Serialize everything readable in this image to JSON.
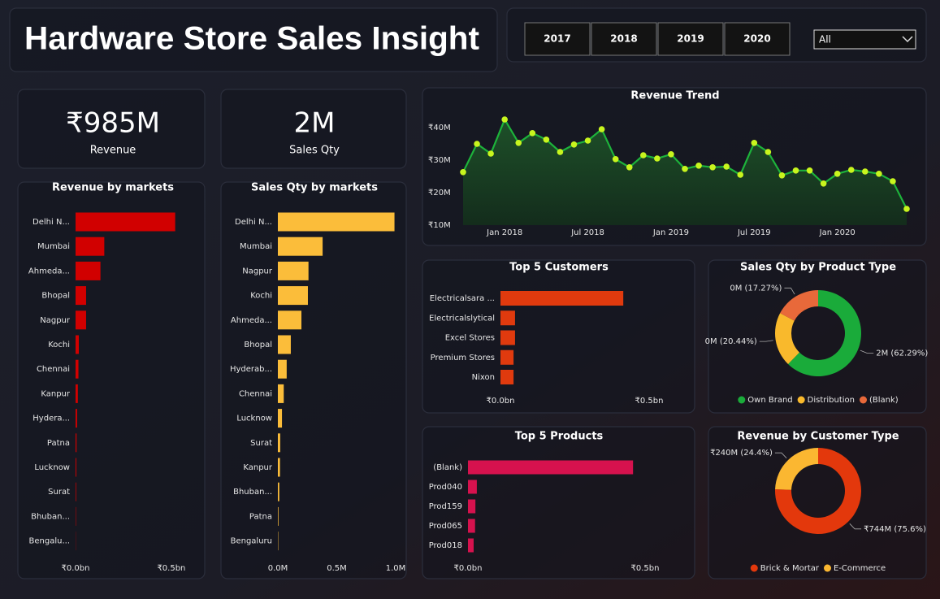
{
  "header": {
    "title": "Hardware Store Sales Insight",
    "years": [
      "2017",
      "2018",
      "2019",
      "2020"
    ],
    "filter": "All"
  },
  "kpis": [
    {
      "value": "₹985M",
      "label": "Revenue"
    },
    {
      "value": "2M",
      "label": "Sales Qty"
    }
  ],
  "chart_data": [
    {
      "type": "bar",
      "orientation": "horizontal",
      "title": "Revenue by markets",
      "color": "#d10000",
      "categories": [
        "Delhi N...",
        "Mumbai",
        "Ahmeda...",
        "Bhopal",
        "Nagpur",
        "Kochi",
        "Chennai",
        "Kanpur",
        "Hydera...",
        "Patna",
        "Lucknow",
        "Surat",
        "Bhuban...",
        "Bengalu..."
      ],
      "values": [
        0.52,
        0.15,
        0.13,
        0.055,
        0.055,
        0.017,
        0.015,
        0.012,
        0.008,
        0.005,
        0.004,
        0.003,
        0.002,
        0.001
      ],
      "xlim": [
        0,
        0.53
      ],
      "xticks": [
        {
          "value": 0,
          "label": "₹0.0bn"
        },
        {
          "value": 0.5,
          "label": "₹0.5bn"
        }
      ]
    },
    {
      "type": "bar",
      "orientation": "horizontal",
      "title": "Sales Qty by markets",
      "color": "#fbbd3a",
      "categories": [
        "Delhi N...",
        "Mumbai",
        "Nagpur",
        "Kochi",
        "Ahmeda...",
        "Bhopal",
        "Hyderab...",
        "Chennai",
        "Lucknow",
        "Surat",
        "Kanpur",
        "Bhuban...",
        "Patna",
        "Bengaluru"
      ],
      "values": [
        0.99,
        0.38,
        0.26,
        0.255,
        0.2,
        0.11,
        0.075,
        0.05,
        0.035,
        0.02,
        0.018,
        0.012,
        0.005,
        0.003
      ],
      "xlim": [
        0,
        1.0
      ],
      "xticks": [
        {
          "value": 0,
          "label": "0.0M"
        },
        {
          "value": 0.5,
          "label": "0.5M"
        },
        {
          "value": 1.0,
          "label": "1.0M"
        }
      ]
    },
    {
      "type": "line",
      "title": "Revenue Trend",
      "color": "#1db33b",
      "marker_color": "#c8f51e",
      "area": true,
      "x": [
        "2017-10",
        "2017-11",
        "2017-12",
        "2018-01",
        "2018-02",
        "2018-03",
        "2018-04",
        "2018-05",
        "2018-06",
        "2018-07",
        "2018-08",
        "2018-09",
        "2018-10",
        "2018-11",
        "2018-12",
        "2019-01",
        "2019-02",
        "2019-03",
        "2019-04",
        "2019-05",
        "2019-06",
        "2019-07",
        "2019-08",
        "2019-09",
        "2019-10",
        "2019-11",
        "2019-12",
        "2020-01",
        "2020-02",
        "2020-03",
        "2020-04",
        "2020-05",
        "2020-06"
      ],
      "values": [
        26.3,
        35,
        32,
        42.5,
        35.3,
        38.3,
        36.3,
        32.5,
        34.8,
        36,
        39.5,
        30.3,
        27.8,
        31.5,
        30.5,
        31.8,
        27.3,
        28.3,
        27.8,
        28,
        25.5,
        35.3,
        32.5,
        25.3,
        26.8,
        26.8,
        22.8,
        25.8,
        27,
        26.5,
        25.8,
        23.5,
        15
      ],
      "xlim": [
        "2017-10",
        "2020-06"
      ],
      "xticks": [
        {
          "value": "2018-01",
          "label": "Jan 2018"
        },
        {
          "value": "2018-07",
          "label": "Jul 2018"
        },
        {
          "value": "2019-01",
          "label": "Jan 2019"
        },
        {
          "value": "2019-07",
          "label": "Jul 2019"
        },
        {
          "value": "2020-01",
          "label": "Jan 2020"
        }
      ],
      "ylim": [
        10,
        43
      ],
      "yticks": [
        {
          "value": 10,
          "label": "₹10M"
        },
        {
          "value": 20,
          "label": "₹20M"
        },
        {
          "value": 30,
          "label": "₹30M"
        },
        {
          "value": 40,
          "label": "₹40M"
        }
      ]
    },
    {
      "type": "bar",
      "orientation": "horizontal",
      "title": "Top 5 Customers",
      "color": "#e03a0e",
      "categories": [
        "Electricalsara ...",
        "Electricalslytical",
        "Excel Stores",
        "Premium Stores",
        "Nixon"
      ],
      "values": [
        0.413,
        0.049,
        0.049,
        0.044,
        0.044
      ],
      "xlim": [
        0,
        0.5
      ],
      "xticks": [
        {
          "value": 0,
          "label": "₹0.0bn"
        },
        {
          "value": 0.5,
          "label": "₹0.5bn"
        }
      ]
    },
    {
      "type": "donut",
      "title": "Sales Qty by Product Type",
      "categories": [
        "Own Brand",
        "Distribution",
        "(Blank)"
      ],
      "colors": [
        "#1aab3a",
        "#f9b92c",
        "#e8693a"
      ],
      "values": [
        62.29,
        20.44,
        17.27
      ],
      "value_labels": [
        "2M (62.29%)",
        "0M (20.44%)",
        "0M (17.27%)"
      ]
    },
    {
      "type": "bar",
      "orientation": "horizontal",
      "title": "Top 5 Products",
      "color": "#d6124e",
      "categories": [
        "(Blank)",
        "Prod040",
        "Prod159",
        "Prod065",
        "Prod018"
      ],
      "values": [
        0.466,
        0.025,
        0.021,
        0.02,
        0.016
      ],
      "xlim": [
        0,
        0.5
      ],
      "xticks": [
        {
          "value": 0,
          "label": "₹0.0bn"
        },
        {
          "value": 0.5,
          "label": "₹0.5bn"
        }
      ]
    },
    {
      "type": "donut",
      "title": "Revenue by Customer Type",
      "categories": [
        "Brick & Mortar",
        "E-Commerce"
      ],
      "colors": [
        "#e3380c",
        "#fbb731"
      ],
      "values": [
        75.6,
        24.4
      ],
      "value_labels": [
        "₹744M (75.6%)",
        "₹240M (24.4%)"
      ]
    }
  ]
}
